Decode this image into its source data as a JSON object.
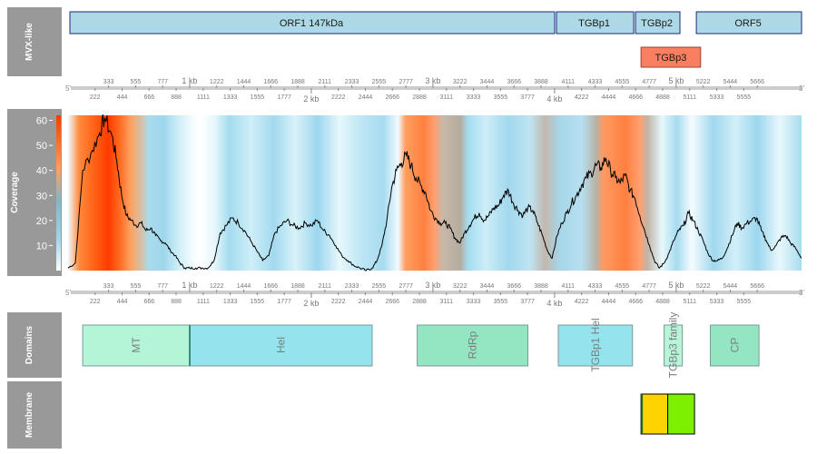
{
  "tracks": {
    "mvx": "MVX-like",
    "coverage": "Coverage",
    "domains": "Domains",
    "membrane": "Membrane"
  },
  "orfs": [
    {
      "label": "ORF1 147kDa",
      "start": 0,
      "end": 4000
    },
    {
      "label": "TGBp1",
      "start": 4000,
      "end": 4650
    },
    {
      "label": "TGBp2",
      "start": 4650,
      "end": 5030
    },
    {
      "label": "ORF5",
      "start": 5150,
      "end": 6030
    }
  ],
  "orf_tgbp3": {
    "label": "TGBp3",
    "start": 4710,
    "end": 5200
  },
  "ruler": {
    "five_prime": "5'",
    "three_prime": "3'",
    "kb_top": [
      "1 kb",
      "3 kb",
      "5 kb"
    ],
    "kb_bottom": [
      "2 kb",
      "4 kb"
    ],
    "ticks_top": [
      "333",
      "555",
      "777",
      "1 kb",
      "1222",
      "1444",
      "1666",
      "1888",
      "2111",
      "2333",
      "2555",
      "2777",
      "3 kb",
      "3222",
      "3444",
      "3666",
      "3888",
      "4111",
      "4333",
      "4555",
      "4777",
      "5 kb",
      "5222",
      "5444",
      "5666"
    ],
    "ticks_bottom": [
      "222",
      "444",
      "666",
      "888",
      "1111",
      "1333",
      "1555",
      "1777",
      "2 kb",
      "2222",
      "2444",
      "2666",
      "2888",
      "3111",
      "3333",
      "3555",
      "3777",
      "4 kb",
      "4222",
      "4444",
      "4666",
      "4888",
      "5111",
      "5333",
      "5555"
    ]
  },
  "coverage_axis": {
    "ticks": [
      "10",
      "20",
      "30",
      "40",
      "50",
      "60"
    ]
  },
  "domains": [
    {
      "label": "MT",
      "start": 120,
      "end": 1000,
      "color": "#b3f5d6"
    },
    {
      "label": "Hel",
      "start": 1000,
      "end": 2500,
      "color": "#93e4ec"
    },
    {
      "label": "RdRp",
      "start": 2870,
      "end": 3780,
      "color": "#93e6c1"
    },
    {
      "label": "TGBp1 Hel",
      "start": 4030,
      "end": 4640,
      "color": "#93e4ec"
    },
    {
      "label": "TGBp3 family",
      "start": 4900,
      "end": 5050,
      "color": "#b8f5d8"
    },
    {
      "label": "CP",
      "start": 5280,
      "end": 5680,
      "color": "#93e6c1"
    }
  ],
  "membrane": [
    {
      "start": 4710,
      "end": 4930,
      "color": "#ffd300"
    },
    {
      "start": 4930,
      "end": 5150,
      "color": "#7cf000"
    }
  ],
  "colors": {
    "sidebar": "#999999",
    "orf": "#add8e6",
    "tgbp3": "#fa7f60",
    "ruler": "#cccccc"
  },
  "chart_data": {
    "type": "line",
    "title": "",
    "xlabel": "",
    "ylabel": "Coverage",
    "xlim": [
      0,
      6030
    ],
    "ylim": [
      0,
      62
    ],
    "series": [
      {
        "x": [
          0,
          60,
          120,
          200,
          260,
          300,
          360,
          400,
          440,
          480,
          520,
          560,
          600,
          640,
          680,
          720,
          760,
          800,
          840,
          880,
          920,
          960,
          1000,
          1050,
          1100,
          1150,
          1200,
          1250,
          1300,
          1350,
          1400,
          1450,
          1500,
          1550,
          1600,
          1650,
          1700,
          1750,
          1800,
          1850,
          1900,
          1950,
          2000,
          2050,
          2100,
          2150,
          2200,
          2250,
          2300,
          2350,
          2400,
          2450,
          2500,
          2540,
          2580,
          2620,
          2660,
          2700,
          2740,
          2780,
          2820,
          2860,
          2900,
          2940,
          2980,
          3020,
          3060,
          3100,
          3140,
          3180,
          3220,
          3260,
          3300,
          3340,
          3380,
          3420,
          3460,
          3500,
          3540,
          3580,
          3620,
          3660,
          3700,
          3740,
          3780,
          3820,
          3860,
          3900,
          3940,
          3980,
          4020,
          4060,
          4100,
          4140,
          4180,
          4220,
          4260,
          4300,
          4340,
          4380,
          4420,
          4460,
          4500,
          4540,
          4580,
          4620,
          4660,
          4700,
          4740,
          4780,
          4820,
          4860,
          4900,
          4940,
          4980,
          5020,
          5060,
          5100,
          5140,
          5180,
          5220,
          5260,
          5300,
          5340,
          5380,
          5420,
          5460,
          5500,
          5540,
          5580,
          5620,
          5660,
          5700,
          5740,
          5780,
          5820,
          5860,
          5900,
          5940,
          5980,
          6030
        ],
        "y": [
          1,
          3,
          40,
          48,
          55,
          61,
          54,
          44,
          30,
          22,
          20,
          18,
          19,
          16,
          17,
          14,
          12,
          11,
          8,
          6,
          3,
          1,
          1,
          1,
          1,
          1,
          4,
          15,
          18,
          21,
          19,
          16,
          12,
          8,
          4,
          6,
          15,
          18,
          20,
          18,
          17,
          19,
          18,
          20,
          16,
          14,
          10,
          6,
          4,
          2,
          1,
          0,
          1,
          4,
          10,
          20,
          33,
          40,
          43,
          46,
          42,
          37,
          34,
          31,
          24,
          21,
          19,
          19,
          17,
          13,
          11,
          15,
          18,
          21,
          23,
          20,
          22,
          25,
          26,
          30,
          32,
          27,
          24,
          22,
          25,
          24,
          19,
          14,
          8,
          5,
          14,
          19,
          23,
          27,
          30,
          34,
          37,
          39,
          42,
          41,
          45,
          40,
          37,
          35,
          38,
          32,
          29,
          22,
          16,
          10,
          4,
          1,
          3,
          7,
          12,
          16,
          18,
          23,
          20,
          16,
          12,
          7,
          4,
          4,
          5,
          9,
          14,
          19,
          17,
          19,
          20,
          21,
          16,
          12,
          8,
          10,
          13,
          14,
          11,
          9,
          5
        ]
      }
    ]
  }
}
